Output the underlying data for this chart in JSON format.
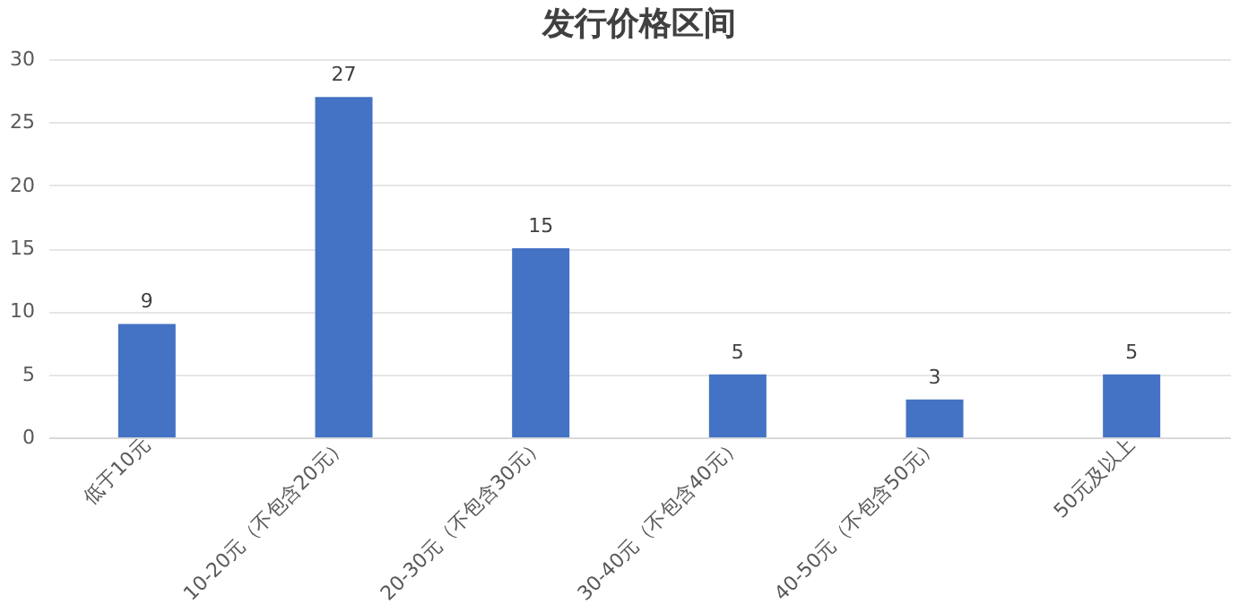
{
  "chart_data": {
    "type": "bar",
    "title": "发行价格区间",
    "categories": [
      "低于10元",
      "10-20元（不包含20元）",
      "20-30元（不包含30元）",
      "30-40元（不包含40元）",
      "40-50元（不包含50元）",
      "50元及以上"
    ],
    "values": [
      9,
      27,
      15,
      5,
      3,
      5
    ],
    "color": "#4472c4",
    "ylim": [
      0,
      30
    ],
    "yticks": [
      0,
      5,
      10,
      15,
      20,
      25,
      30
    ],
    "grid": "y",
    "data_labels": true
  }
}
